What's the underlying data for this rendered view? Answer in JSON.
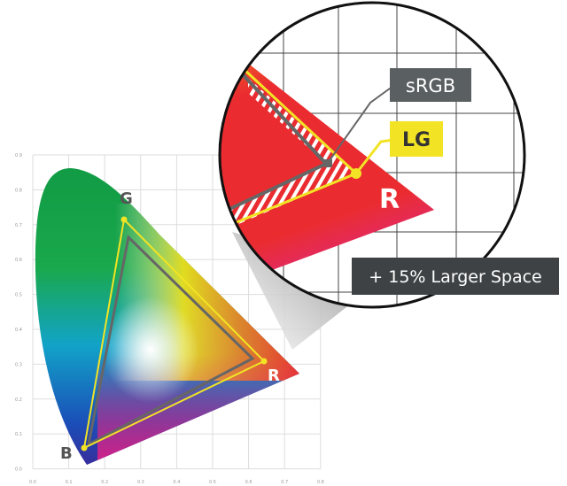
{
  "diagram": {
    "axis": {
      "y_ticks": [
        "0.9",
        "0.8",
        "0.7",
        "0.6",
        "0.5",
        "0.4",
        "0.3",
        "0.2",
        "0.1",
        "0.0"
      ],
      "x_ticks": [
        "0.0",
        "0.1",
        "0.2",
        "0.3",
        "0.4",
        "0.5",
        "0.6",
        "0.7",
        "0.8"
      ]
    },
    "vertices": {
      "g": "G",
      "r": "R",
      "b": "B"
    },
    "zoom": {
      "srgb": "sRGB",
      "lg": "LG",
      "r": "R"
    },
    "callout": "+ 15% Larger Space"
  }
}
